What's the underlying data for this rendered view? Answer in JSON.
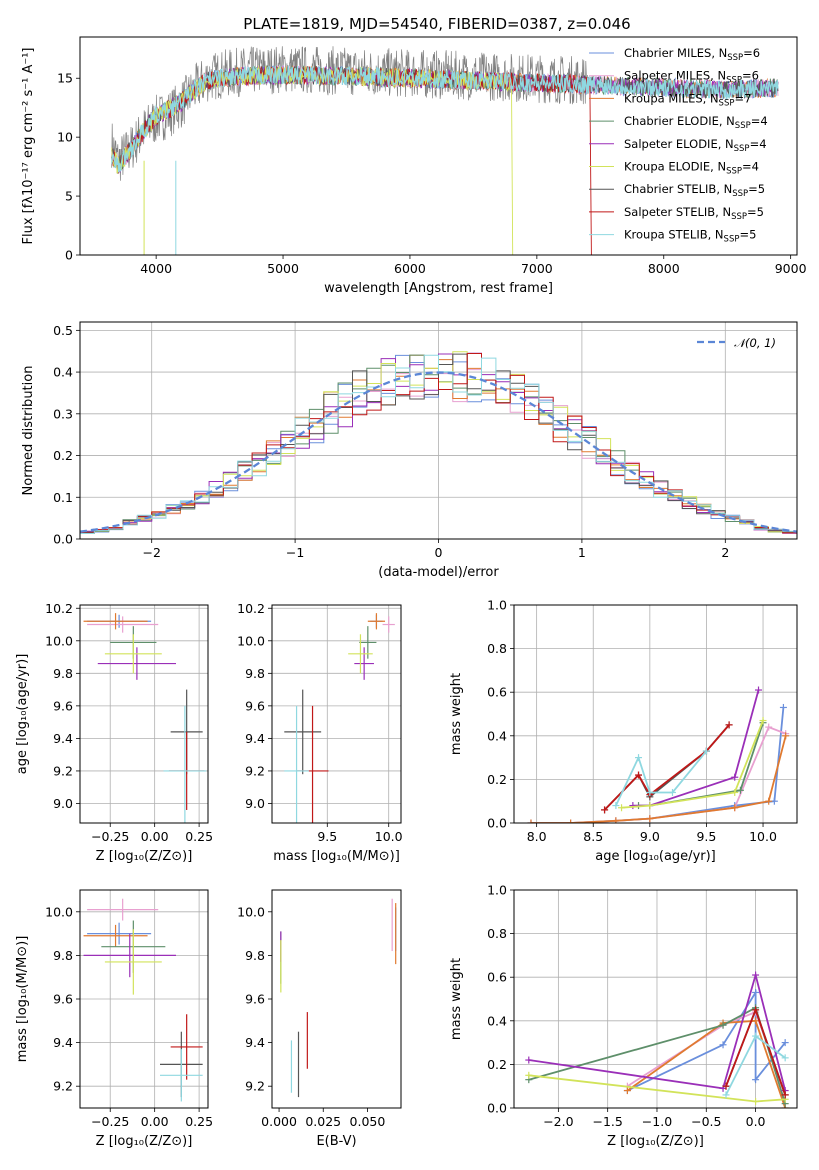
{
  "title": "PLATE=1819, MJD=54540, FIBERID=0387, z=0.046",
  "series": [
    {
      "name": "Chabrier MILES",
      "color": "#6a8fdc"
    },
    {
      "name": "Salpeter MILES",
      "color": "#e8a0d0"
    },
    {
      "name": "Kroupa MILES",
      "color": "#e07a30"
    },
    {
      "name": "Chabrier ELODIE",
      "color": "#5e8f6a"
    },
    {
      "name": "Salpeter ELODIE",
      "color": "#9a2fb8"
    },
    {
      "name": "Kroupa ELODIE",
      "color": "#d2e35a"
    },
    {
      "name": "Chabrier STELIB",
      "color": "#555555"
    },
    {
      "name": "Salpeter STELIB",
      "color": "#c01818"
    },
    {
      "name": "Kroupa STELIB",
      "color": "#8fd8e0"
    }
  ],
  "chart_data": [
    {
      "id": "spectrum",
      "type": "line",
      "xlabel": "wavelength [Angstrom, rest frame]",
      "ylabel": "Flux [fλ10⁻¹⁷ erg cm⁻² s⁻¹ A⁻¹]",
      "xlim": [
        3400,
        9050
      ],
      "ylim": [
        0,
        18.5
      ],
      "xticks": [
        4000,
        5000,
        6000,
        7000,
        8000,
        9000
      ],
      "yticks": [
        0,
        5,
        10,
        15
      ],
      "observed_continuum": {
        "x": [
          3650,
          3700,
          3800,
          3900,
          4000,
          4100,
          4200,
          4300,
          4400,
          4500,
          4700,
          5000,
          5500,
          6000,
          6500,
          7000,
          7400
        ],
        "y": [
          9.5,
          8.0,
          9.0,
          10.5,
          11.5,
          12.0,
          12.8,
          14.0,
          15.0,
          15.3,
          15.6,
          15.8,
          15.6,
          15.4,
          15.2,
          15.0,
          14.8
        ]
      },
      "model_continuum": {
        "x": [
          3650,
          3700,
          3800,
          3900,
          4000,
          4100,
          4200,
          4300,
          4400,
          4500,
          4700,
          5000,
          5500,
          6000,
          6500,
          7000,
          7500,
          8000,
          8500,
          8900
        ],
        "y": [
          8.5,
          7.5,
          9.0,
          10.5,
          11.8,
          12.4,
          13.0,
          14.0,
          14.8,
          15.0,
          15.2,
          15.3,
          15.2,
          15.0,
          14.8,
          14.6,
          14.4,
          14.2,
          14.0,
          14.2
        ]
      },
      "model_end_wavelengths": {
        "Kroupa ELODIE": 6800,
        "Salpeter STELIB": 7420
      },
      "series_labels": [
        {
          "name": "Chabrier MILES",
          "nssp": "6"
        },
        {
          "name": "Salpeter MILES",
          "nssp": "6"
        },
        {
          "name": "Kroupa MILES",
          "nssp": "7"
        },
        {
          "name": "Chabrier ELODIE",
          "nssp": "4"
        },
        {
          "name": "Salpeter ELODIE",
          "nssp": "4"
        },
        {
          "name": "Kroupa ELODIE",
          "nssp": "4"
        },
        {
          "name": "Chabrier STELIB",
          "nssp": "5"
        },
        {
          "name": "Salpeter STELIB",
          "nssp": "5"
        },
        {
          "name": "Kroupa STELIB",
          "nssp": "5"
        }
      ],
      "legend": "top-right"
    },
    {
      "id": "residuals",
      "type": "line",
      "xlabel": "(data-model)/error",
      "ylabel": "Normed distribution",
      "xlim": [
        -2.5,
        2.5
      ],
      "ylim": [
        0,
        0.52
      ],
      "xticks": [
        -2,
        -1,
        0,
        1,
        2
      ],
      "yticks": [
        0.0,
        0.1,
        0.2,
        0.3,
        0.4,
        0.5
      ],
      "grid": true,
      "gaussian_label": "𝒩(0, 1)",
      "legend": "top-right"
    },
    {
      "id": "age_vs_Z",
      "type": "scatter",
      "xlabel": "Z [log₁₀(Z/Z⊙)]",
      "ylabel": "age  [log₁₀(age/yr)]",
      "xlim": [
        -0.42,
        0.3
      ],
      "ylim": [
        8.88,
        10.22
      ],
      "xticks": [
        -0.25,
        0.0,
        0.25
      ],
      "yticks": [
        9.0,
        9.2,
        9.4,
        9.6,
        9.8,
        10.0,
        10.2
      ],
      "grid": true,
      "points": [
        {
          "s": 0,
          "x": -0.2,
          "y": 10.12,
          "xe": 0.18,
          "ye": 0.04
        },
        {
          "s": 1,
          "x": -0.18,
          "y": 10.1,
          "xe": 0.2,
          "ye": 0.05
        },
        {
          "s": 2,
          "x": -0.22,
          "y": 10.12,
          "xe": 0.18,
          "ye": 0.05
        },
        {
          "s": 3,
          "x": -0.12,
          "y": 9.99,
          "xe": 0.13,
          "ye": 0.1
        },
        {
          "s": 4,
          "x": -0.1,
          "y": 9.86,
          "xe": 0.22,
          "ye": 0.1
        },
        {
          "s": 5,
          "x": -0.12,
          "y": 9.92,
          "xe": 0.16,
          "ye": 0.12
        },
        {
          "s": 6,
          "x": 0.18,
          "y": 9.44,
          "xe": 0.09,
          "ye": 0.26
        },
        {
          "s": 7,
          "x": 0.18,
          "y": 9.2,
          "xe": 0.1,
          "ye": 0.24
        },
        {
          "s": 8,
          "x": 0.17,
          "y": 9.2,
          "xe": 0.12,
          "ye": 0.4
        }
      ]
    },
    {
      "id": "age_vs_mass",
      "type": "scatter",
      "xlabel": "mass [log₁₀(M/M⊙)]",
      "ylabel": "",
      "xlim": [
        9.05,
        10.1
      ],
      "ylim": [
        8.88,
        10.22
      ],
      "xticks": [
        9.5,
        10.0
      ],
      "yticks": [
        9.0,
        9.2,
        9.4,
        9.6,
        9.8,
        10.0,
        10.2
      ],
      "grid": true,
      "points": [
        {
          "s": 0,
          "x": 9.9,
          "y": 10.12,
          "xe": 0.05,
          "ye": 0.04
        },
        {
          "s": 1,
          "x": 10.0,
          "y": 10.1,
          "xe": 0.05,
          "ye": 0.05
        },
        {
          "s": 2,
          "x": 9.9,
          "y": 10.12,
          "xe": 0.07,
          "ye": 0.05
        },
        {
          "s": 3,
          "x": 9.83,
          "y": 9.99,
          "xe": 0.07,
          "ye": 0.1
        },
        {
          "s": 4,
          "x": 9.8,
          "y": 9.86,
          "xe": 0.08,
          "ye": 0.1
        },
        {
          "s": 5,
          "x": 9.77,
          "y": 9.92,
          "xe": 0.1,
          "ye": 0.12
        },
        {
          "s": 6,
          "x": 9.3,
          "y": 9.44,
          "xe": 0.15,
          "ye": 0.26
        },
        {
          "s": 7,
          "x": 9.38,
          "y": 9.2,
          "xe": 0.13,
          "ye": 0.4
        },
        {
          "s": 8,
          "x": 9.25,
          "y": 9.2,
          "xe": 0.1,
          "ye": 0.4
        }
      ]
    },
    {
      "id": "massweight_vs_age",
      "type": "line",
      "xlabel": "age  [log₁₀(age/yr)]",
      "ylabel": "mass weight",
      "xlim": [
        7.8,
        10.3
      ],
      "ylim": [
        0,
        1.0
      ],
      "xticks": [
        8.0,
        8.5,
        9.0,
        9.5,
        10.0
      ],
      "yticks": [
        0.0,
        0.2,
        0.4,
        0.6,
        0.8,
        1.0
      ],
      "grid": true,
      "lines": [
        {
          "s": 0,
          "x": [
            7.95,
            8.3,
            8.7,
            9.0,
            9.75,
            10.1,
            10.18
          ],
          "y": [
            0.0,
            0.0,
            0.01,
            0.02,
            0.08,
            0.1,
            0.53
          ]
        },
        {
          "s": 1,
          "x": [
            7.95,
            8.3,
            8.7,
            9.0,
            9.75,
            10.05,
            10.2
          ],
          "y": [
            0.0,
            0.0,
            0.01,
            0.02,
            0.07,
            0.44,
            0.41
          ]
        },
        {
          "s": 2,
          "x": [
            7.95,
            8.3,
            8.7,
            9.0,
            9.75,
            10.05,
            10.2
          ],
          "y": [
            0.0,
            0.0,
            0.01,
            0.02,
            0.07,
            0.1,
            0.4
          ]
        },
        {
          "s": 3,
          "x": [
            8.9,
            9.0,
            9.8,
            10.0
          ],
          "y": [
            0.08,
            0.08,
            0.15,
            0.46
          ]
        },
        {
          "s": 4,
          "x": [
            8.85,
            9.0,
            9.75,
            9.96
          ],
          "y": [
            0.08,
            0.08,
            0.21,
            0.61
          ]
        },
        {
          "s": 5,
          "x": [
            8.75,
            9.0,
            9.75,
            10.0
          ],
          "y": [
            0.07,
            0.08,
            0.14,
            0.47
          ]
        },
        {
          "s": 6,
          "x": [
            8.6,
            8.9,
            9.0,
            9.5,
            9.7
          ],
          "y": [
            0.06,
            0.22,
            0.12,
            0.33,
            0.45
          ]
        },
        {
          "s": 7,
          "x": [
            8.6,
            8.9,
            9.0,
            9.5,
            9.7
          ],
          "y": [
            0.06,
            0.22,
            0.13,
            0.33,
            0.45
          ]
        },
        {
          "s": 8,
          "x": [
            8.7,
            8.9,
            9.0,
            9.2,
            9.5
          ],
          "y": [
            0.08,
            0.3,
            0.14,
            0.14,
            0.33
          ]
        }
      ]
    },
    {
      "id": "mass_vs_Z",
      "type": "scatter",
      "xlabel": "Z [log₁₀(Z/Z⊙)]",
      "ylabel": "mass [log₁₀(M/M⊙)]",
      "xlim": [
        -0.42,
        0.3
      ],
      "ylim": [
        9.1,
        10.1
      ],
      "xticks": [
        -0.25,
        0.0,
        0.25
      ],
      "yticks": [
        9.2,
        9.4,
        9.6,
        9.8,
        10.0
      ],
      "grid": true,
      "points": [
        {
          "s": 0,
          "x": -0.2,
          "y": 9.9,
          "xe": 0.18,
          "ye": 0.05
        },
        {
          "s": 1,
          "x": -0.18,
          "y": 10.01,
          "xe": 0.2,
          "ye": 0.05
        },
        {
          "s": 2,
          "x": -0.22,
          "y": 9.89,
          "xe": 0.18,
          "ye": 0.05
        },
        {
          "s": 3,
          "x": -0.12,
          "y": 9.84,
          "xe": 0.18,
          "ye": 0.12
        },
        {
          "s": 4,
          "x": -0.14,
          "y": 9.8,
          "xe": 0.26,
          "ye": 0.1
        },
        {
          "s": 5,
          "x": -0.12,
          "y": 9.77,
          "xe": 0.16,
          "ye": 0.15
        },
        {
          "s": 6,
          "x": 0.15,
          "y": 9.3,
          "xe": 0.12,
          "ye": 0.15
        },
        {
          "s": 7,
          "x": 0.18,
          "y": 9.38,
          "xe": 0.09,
          "ye": 0.15
        },
        {
          "s": 8,
          "x": 0.15,
          "y": 9.25,
          "xe": 0.12,
          "ye": 0.12
        }
      ]
    },
    {
      "id": "mass_vs_EBV",
      "type": "scatter",
      "xlabel": "E(B-V)",
      "ylabel": "",
      "xlim": [
        -0.004,
        0.069
      ],
      "ylim": [
        9.1,
        10.1
      ],
      "xticks": [
        0.0,
        0.025,
        0.05
      ],
      "yticks": [
        9.2,
        9.4,
        9.6,
        9.8,
        10.0
      ],
      "grid": false,
      "points": [
        {
          "s": 0,
          "x": 0.066,
          "y": 9.92,
          "ye": 0.1
        },
        {
          "s": 1,
          "x": 0.064,
          "y": 9.94,
          "ye": 0.12
        },
        {
          "s": 2,
          "x": 0.066,
          "y": 9.9,
          "ye": 0.14
        },
        {
          "s": 3,
          "x": 0.001,
          "y": 9.79,
          "ye": 0.12
        },
        {
          "s": 4,
          "x": 0.001,
          "y": 9.84,
          "ye": 0.07
        },
        {
          "s": 5,
          "x": 0.001,
          "y": 9.75,
          "ye": 0.12
        },
        {
          "s": 6,
          "x": 0.011,
          "y": 9.3,
          "ye": 0.15
        },
        {
          "s": 7,
          "x": 0.016,
          "y": 9.41,
          "ye": 0.13
        },
        {
          "s": 8,
          "x": 0.007,
          "y": 9.29,
          "ye": 0.12
        }
      ]
    },
    {
      "id": "massweight_vs_Z",
      "type": "line",
      "xlabel": "Z [log₁₀(Z/Z⊙)]",
      "ylabel": "mass weight",
      "xlim": [
        -2.45,
        0.42
      ],
      "ylim": [
        0,
        1.0
      ],
      "xticks": [
        -2.0,
        -1.5,
        -1.0,
        -0.5,
        0.0
      ],
      "yticks": [
        0.0,
        0.2,
        0.4,
        0.6,
        0.8,
        1.0
      ],
      "grid": true,
      "lines": [
        {
          "s": 0,
          "x": [
            -1.3,
            -0.33,
            0.0,
            0.0,
            0.3
          ],
          "y": [
            0.08,
            0.29,
            0.53,
            0.13,
            0.3
          ]
        },
        {
          "s": 1,
          "x": [
            -1.3,
            -0.33,
            0.0,
            0.3
          ],
          "y": [
            0.1,
            0.38,
            0.44,
            0.06
          ]
        },
        {
          "s": 2,
          "x": [
            -1.3,
            -0.33,
            0.0,
            0.3
          ],
          "y": [
            0.08,
            0.39,
            0.4,
            0.0
          ]
        },
        {
          "s": 3,
          "x": [
            -2.3,
            -0.33,
            0.0,
            0.3
          ],
          "y": [
            0.13,
            0.38,
            0.46,
            0.02
          ]
        },
        {
          "s": 4,
          "x": [
            -2.3,
            -0.33,
            0.0,
            0.3
          ],
          "y": [
            0.22,
            0.09,
            0.61,
            0.08
          ]
        },
        {
          "s": 5,
          "x": [
            -2.3,
            0.0,
            0.3
          ],
          "y": [
            0.15,
            0.03,
            0.04
          ]
        },
        {
          "s": 6,
          "x": [
            -0.3,
            0.0,
            0.3
          ],
          "y": [
            0.1,
            0.45,
            0.06
          ]
        },
        {
          "s": 7,
          "x": [
            -0.3,
            0.0,
            0.3
          ],
          "y": [
            0.1,
            0.45,
            0.06
          ]
        },
        {
          "s": 8,
          "x": [
            -0.3,
            0.0,
            0.3
          ],
          "y": [
            0.06,
            0.33,
            0.23
          ]
        }
      ]
    }
  ]
}
